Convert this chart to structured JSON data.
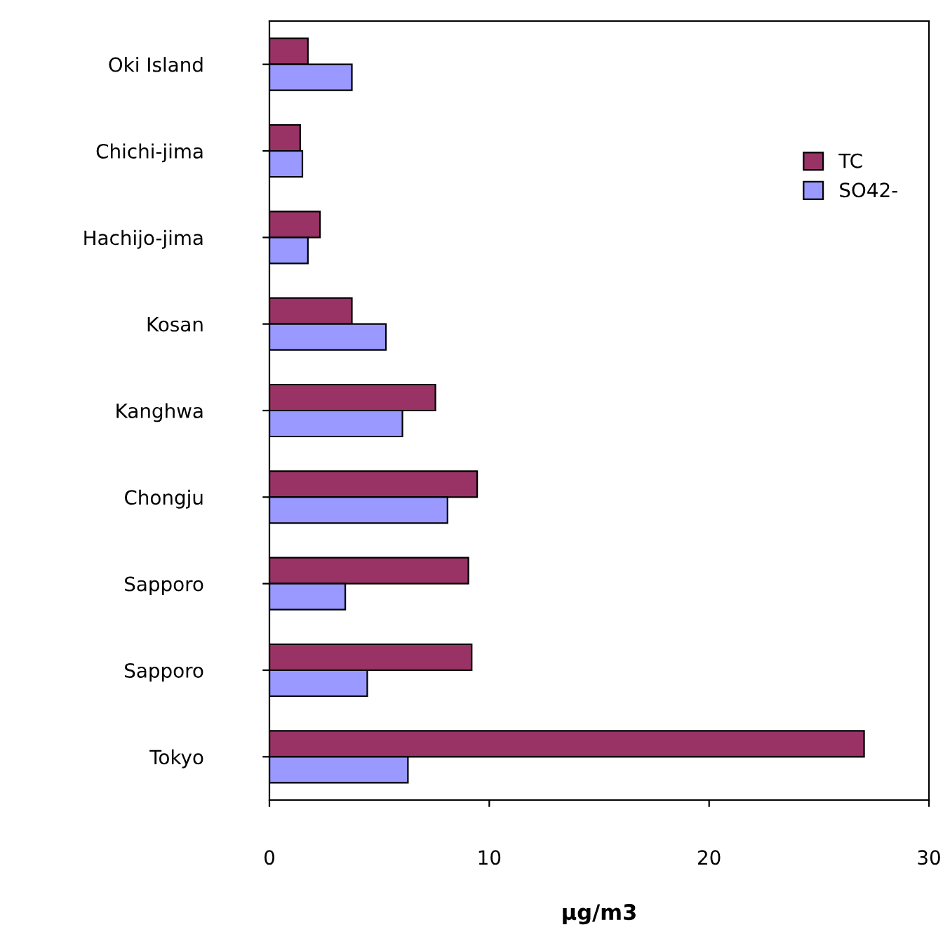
{
  "chart_data": {
    "type": "bar",
    "orientation": "horizontal",
    "xlabel": "µg/m3",
    "categories": [
      "Oki Island",
      "Chichi-jima",
      "Hachijo-jima",
      "Kosan",
      "Kanghwa",
      "Chongju",
      "Sapporo",
      "Sapporo",
      "Tokyo"
    ],
    "series": [
      {
        "name": "TC",
        "color": "#993366",
        "values": [
          1.75,
          1.4,
          2.3,
          3.75,
          7.55,
          9.45,
          9.05,
          9.2,
          27.05
        ]
      },
      {
        "name": "SO42-",
        "color": "#9999ff",
        "values": [
          3.75,
          1.5,
          1.75,
          5.3,
          6.05,
          8.1,
          3.45,
          4.45,
          6.3
        ]
      }
    ],
    "xlim": [
      0,
      30
    ],
    "xticks": [
      0,
      10,
      20,
      30
    ],
    "grid": false,
    "legend": "right"
  }
}
